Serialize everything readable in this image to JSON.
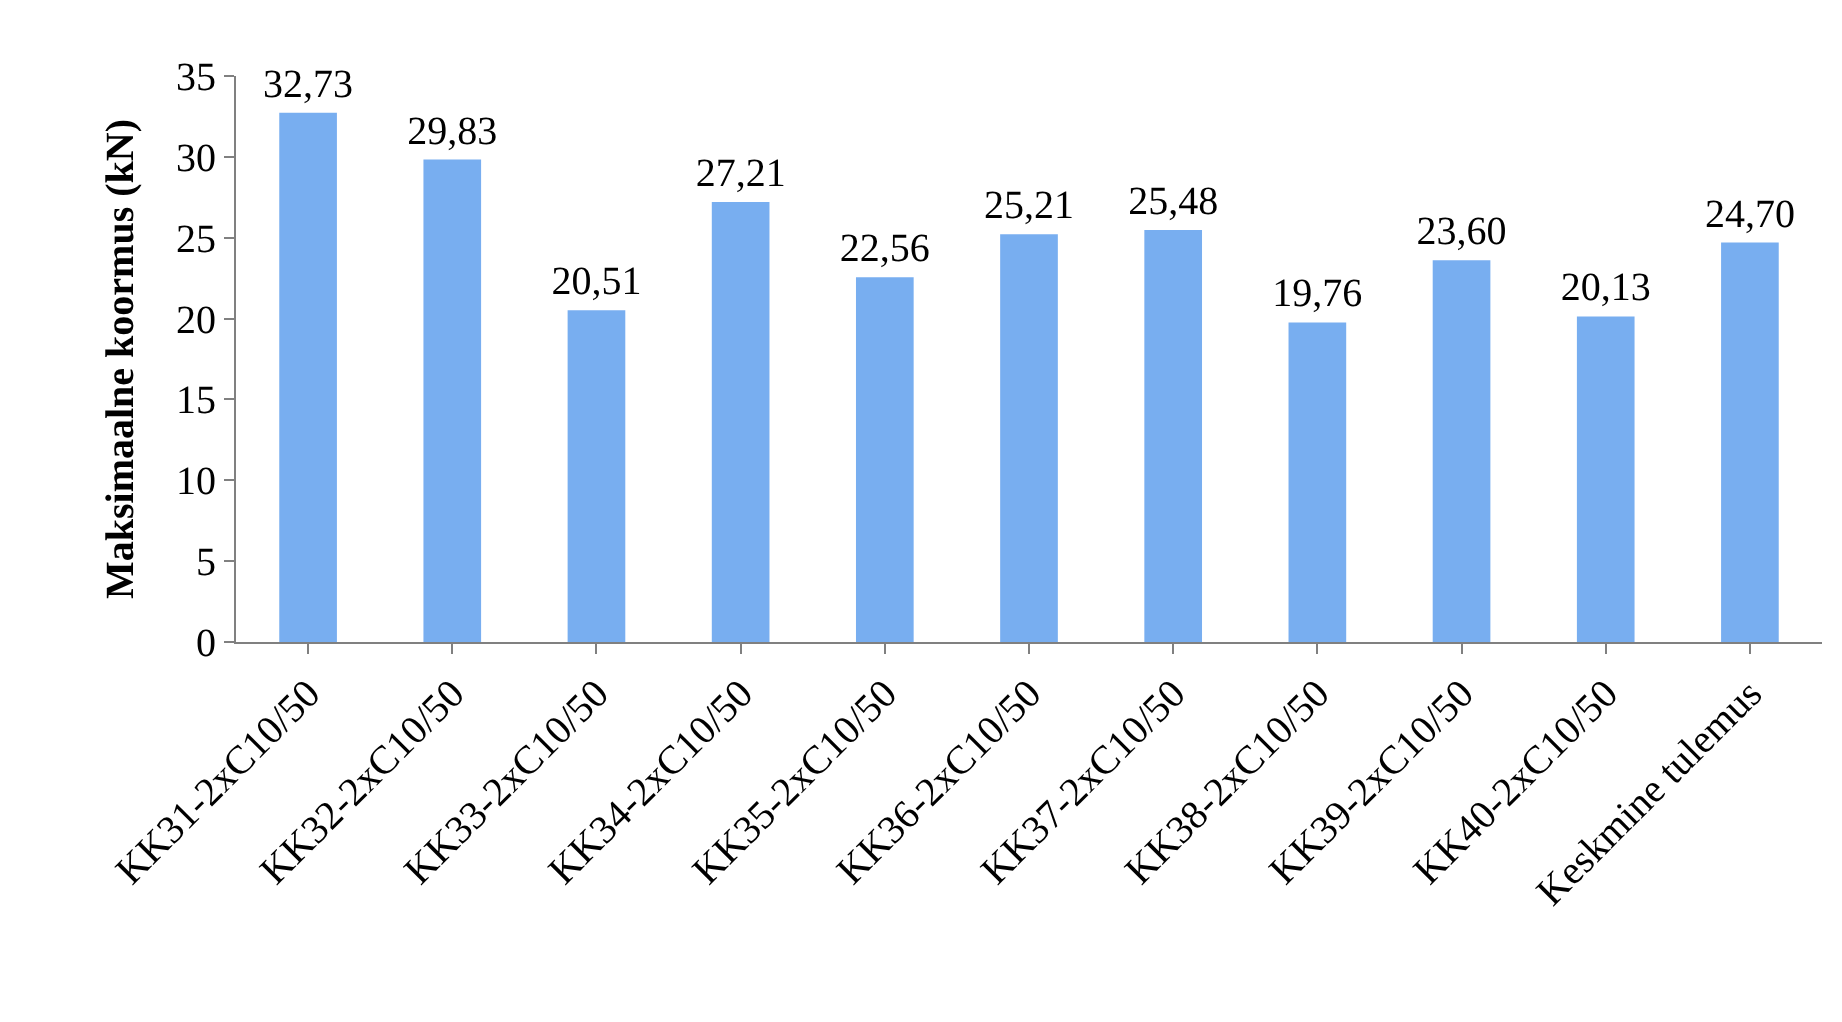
{
  "chart_data": {
    "type": "bar",
    "ylabel": "Maksimaalne koormus (kN)",
    "categories": [
      "KK31-2xC10/50",
      "KK32-2xC10/50",
      "KK33-2xC10/50",
      "KK34-2xC10/50",
      "KK35-2xC10/50",
      "KK36-2xC10/50",
      "KK37-2xC10/50",
      "KK38-2xC10/50",
      "KK39-2xC10/50",
      "KK40-2xC10/50",
      "Keskmine tulemus"
    ],
    "values": [
      32.73,
      29.83,
      20.51,
      27.21,
      22.56,
      25.21,
      25.48,
      19.76,
      23.6,
      20.13,
      24.7
    ],
    "value_labels": [
      "32,73",
      "29,83",
      "20,51",
      "27,21",
      "22,56",
      "25,21",
      "25,48",
      "19,76",
      "23,60",
      "20,13",
      "24,70"
    ],
    "color": "#78aef0",
    "ylim": [
      0,
      35
    ],
    "yticks": [
      0,
      5,
      10,
      15,
      20,
      25,
      30,
      35
    ]
  }
}
